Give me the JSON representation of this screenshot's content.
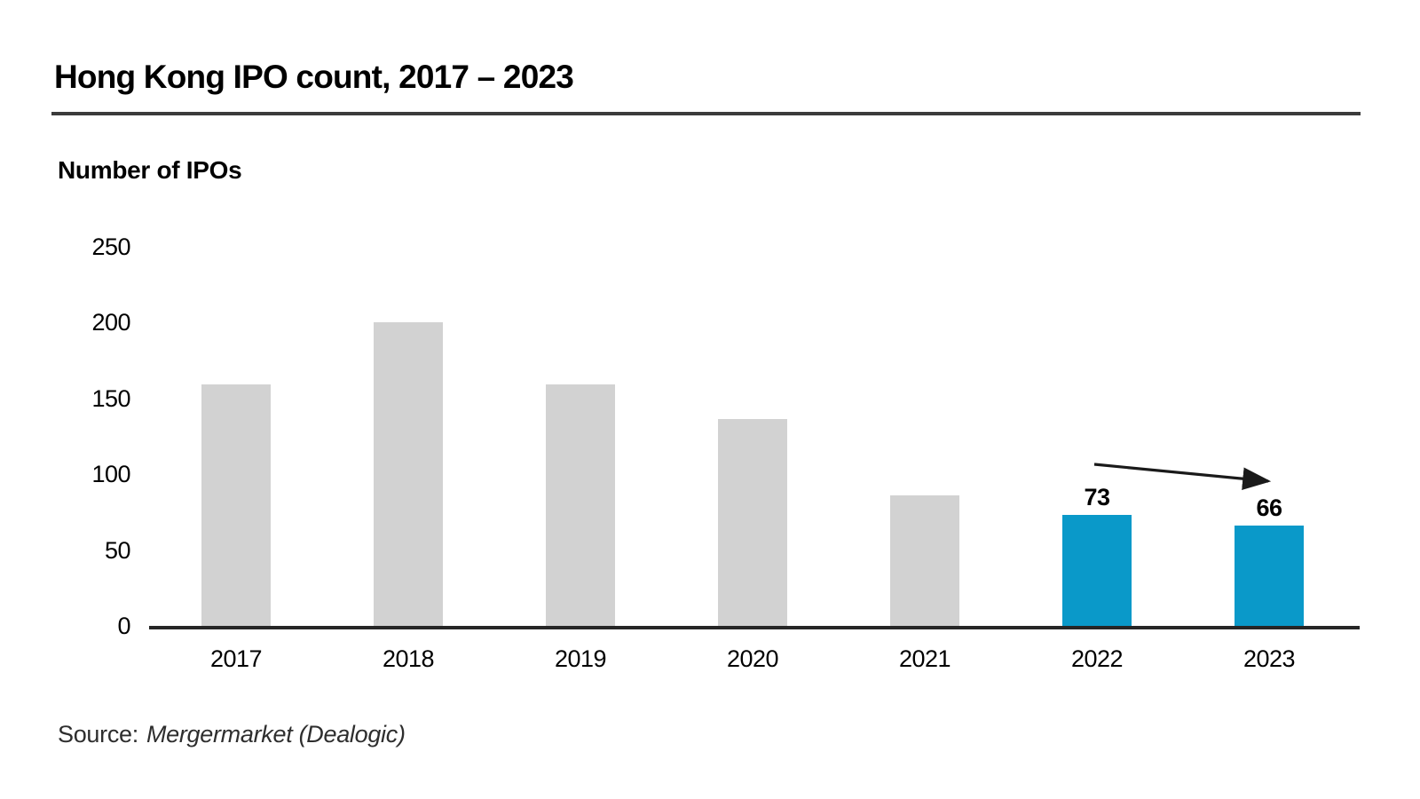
{
  "title": "Hong Kong IPO count, 2017 – 2023",
  "source": {
    "prefix": "Source:",
    "name": "Mergermarket (Dealogic)"
  },
  "colors": {
    "bar_default": "#D2D2D2",
    "bar_highlight": "#0A99C9",
    "axis_line": "#262626",
    "title_rule": "#3B3B3B",
    "arrow": "#1A1A1A"
  },
  "chart_data": {
    "type": "bar",
    "title": "Hong Kong IPO count, 2017 – 2023",
    "xlabel": "",
    "ylabel": "Number of IPOs",
    "categories": [
      "2017",
      "2018",
      "2019",
      "2020",
      "2021",
      "2022",
      "2023"
    ],
    "values": [
      159,
      200,
      159,
      136,
      86,
      73,
      66
    ],
    "values_note": "2017-2021 estimated from bar heights; 2022 and 2023 labeled on chart",
    "data_labels": [
      null,
      null,
      null,
      null,
      null,
      "73",
      "66"
    ],
    "bar_highlight_flags": [
      false,
      false,
      false,
      false,
      false,
      true,
      true
    ],
    "yticks": [
      0,
      50,
      100,
      150,
      200,
      250
    ],
    "ylim": [
      0,
      250
    ],
    "grid": false,
    "legend": null,
    "annotation": "downward-sloping arrow from above 2022 bar to above 2023 bar indicating declining trend"
  }
}
